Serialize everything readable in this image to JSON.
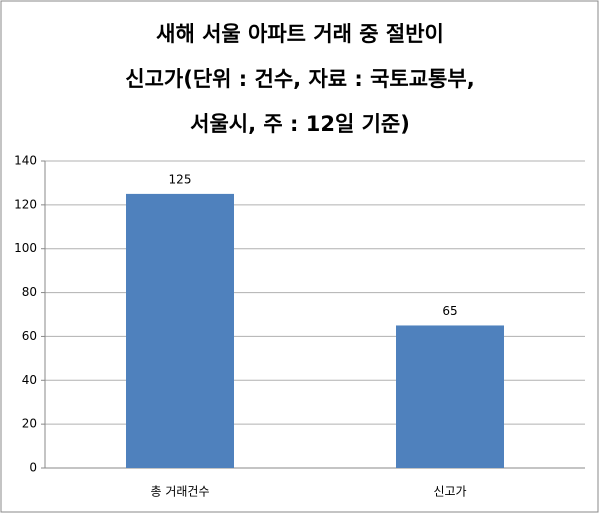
{
  "chart_data": {
    "type": "bar",
    "title": [
      "새해 서울 아파트 거래 중 절반이",
      "신고가(단위 : 건수, 자료 : 국토교통부,",
      "서울시, 주 : 12일 기준)"
    ],
    "categories": [
      "총 거래건수",
      "신고가"
    ],
    "values": [
      125,
      65
    ],
    "color": "#4f81bd",
    "ylim": [
      0,
      140
    ],
    "yticks": [
      0,
      20,
      40,
      60,
      80,
      100,
      120,
      140
    ],
    "grid": true
  }
}
